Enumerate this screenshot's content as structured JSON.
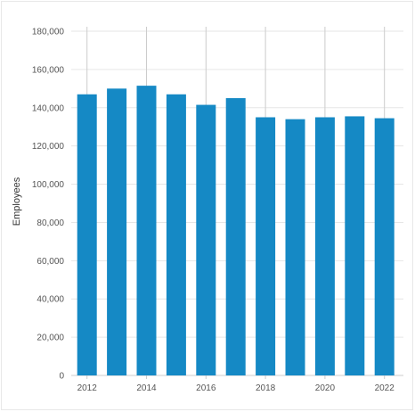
{
  "chart_data": {
    "type": "bar",
    "categories": [
      "2012",
      "2013",
      "2014",
      "2015",
      "2016",
      "2017",
      "2018",
      "2019",
      "2020",
      "2021",
      "2022"
    ],
    "values": [
      147000,
      150000,
      151500,
      147000,
      141500,
      145000,
      135000,
      134000,
      135000,
      135500,
      134500
    ],
    "x_tick_labels": [
      "2012",
      "2014",
      "2016",
      "2018",
      "2020",
      "2022"
    ],
    "y_tick_labels": [
      "0",
      "20,000",
      "40,000",
      "60,000",
      "80,000",
      "100,000",
      "120,000",
      "140,000",
      "160,000",
      "180,000"
    ],
    "ylabel": "Employees",
    "xlabel": "",
    "ylim": [
      0,
      180000
    ],
    "y_tick_step": 20000,
    "grid": true,
    "bar_color": "#1589c5",
    "grid_color": "#e6e6e6",
    "vertical_grid_color": "#cccccc"
  }
}
